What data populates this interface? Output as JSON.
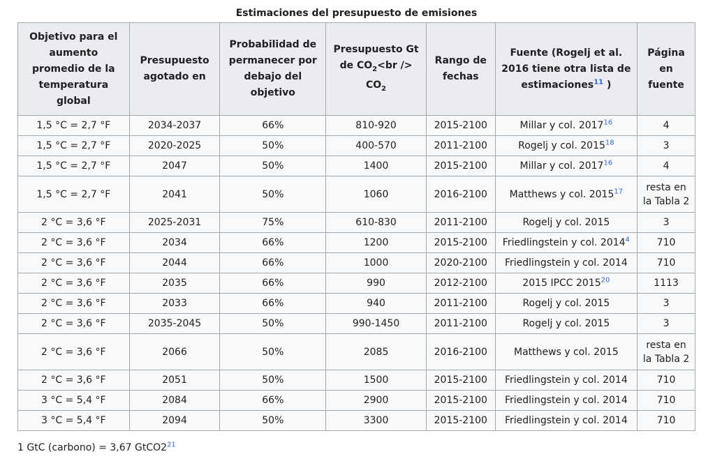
{
  "caption": "Estimaciones del presupuesto de emisiones",
  "headers": {
    "target": "Objetivo para el aumento promedio de la temperatura global",
    "year": "Presupuesto agotado en",
    "prob": "Probabilidad de permanecer por debajo del objetivo",
    "budget_a": "Presupuesto Gt de CO",
    "budget_sub": "2",
    "budget_b": "<br />",
    "budget_c": "CO",
    "range": "Rango de fechas",
    "source": "Fuente (Rogelj et al. 2016 tiene otra lista de estimaciones",
    "source_ref": "11",
    "source_end": " )",
    "page": "Página en fuente"
  },
  "rows": [
    {
      "target": "1,5 °C = 2,7 °F",
      "year": "2034-2037",
      "prob": "66%",
      "budget": "810-920",
      "range": "2015-2100",
      "source": "Millar y col. 2017",
      "ref": "16",
      "page": "4"
    },
    {
      "target": "1,5 °C = 2,7 °F",
      "year": "2020-2025",
      "prob": "50%",
      "budget": "400-570",
      "range": "2011-2100",
      "source": "Rogelj y col. 2015",
      "ref": "18",
      "page": "3"
    },
    {
      "target": "1,5 °C = 2,7 °F",
      "year": "2047",
      "prob": "50%",
      "budget": "1400",
      "range": "2015-2100",
      "source": "Millar y col. 2017",
      "ref": "16",
      "page": "4"
    },
    {
      "target": "1,5 °C = 2,7 °F",
      "year": "2041",
      "prob": "50%",
      "budget": "1060",
      "range": "2016-2100",
      "source": "Matthews y col. 2015",
      "ref": "17",
      "page": "resta en la Tabla 2"
    },
    {
      "target": "2 °C = 3,6 °F",
      "year": "2025-2031",
      "prob": "75%",
      "budget": "610-830",
      "range": "2011-2100",
      "source": "Rogelj y col. 2015",
      "ref": "",
      "page": "3"
    },
    {
      "target": "2 °C = 3,6 °F",
      "year": "2034",
      "prob": "66%",
      "budget": "1200",
      "range": "2015-2100",
      "source": "Friedlingstein y col. 2014",
      "ref": "4",
      "page": "710"
    },
    {
      "target": "2 °C = 3,6 °F",
      "year": "2044",
      "prob": "66%",
      "budget": "1000",
      "range": "2020-2100",
      "source": "Friedlingstein y col. 2014",
      "ref": "",
      "page": "710"
    },
    {
      "target": "2 °C = 3,6 °F",
      "year": "2035",
      "prob": "66%",
      "budget": "990",
      "range": "2012-2100",
      "source": "2015 IPCC 2015",
      "ref": "20",
      "page": "1113"
    },
    {
      "target": "2 °C = 3,6 °F",
      "year": "2033",
      "prob": "66%",
      "budget": "940",
      "range": "2011-2100",
      "source": "Rogelj y col. 2015",
      "ref": "",
      "page": "3"
    },
    {
      "target": "2 °C = 3,6 °F",
      "year": "2035-2045",
      "prob": "50%",
      "budget": "990-1450",
      "range": "2011-2100",
      "source": "Rogelj y col. 2015",
      "ref": "",
      "page": "3"
    },
    {
      "target": "2 °C = 3,6 °F",
      "year": "2066",
      "prob": "50%",
      "budget": "2085",
      "range": "2016-2100",
      "source": "Matthews y col. 2015",
      "ref": "",
      "page": "resta en la Tabla 2"
    },
    {
      "target": "2 °C = 3,6 °F",
      "year": "2051",
      "prob": "50%",
      "budget": "1500",
      "range": "2015-2100",
      "source": "Friedlingstein y col. 2014",
      "ref": "",
      "page": "710"
    },
    {
      "target": "3 °C = 5,4 °F",
      "year": "2084",
      "prob": "66%",
      "budget": "2900",
      "range": "2015-2100",
      "source": "Friedlingstein y col. 2014",
      "ref": "",
      "page": "710"
    },
    {
      "target": "3 °C = 5,4 °F",
      "year": "2094",
      "prob": "50%",
      "budget": "3300",
      "range": "2015-2100",
      "source": "Friedlingstein y col. 2014",
      "ref": "",
      "page": "710"
    }
  ],
  "footnote": {
    "text": "1 GtC (carbono) = 3,67 GtCO2",
    "ref": "21"
  },
  "colors": {
    "header_bg": "#eaecf0",
    "cell_bg": "#f8f9fa",
    "border": "#a2a9b1",
    "link": "#3366cc"
  }
}
